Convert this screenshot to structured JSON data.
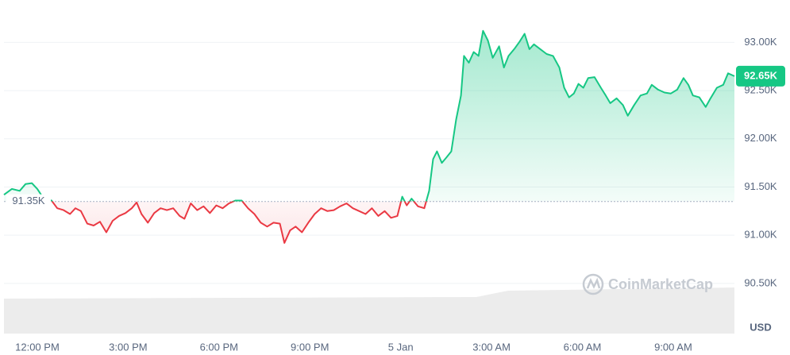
{
  "chart_data": {
    "type": "line",
    "x": [
      -1.1,
      -0.84,
      -0.58,
      -0.39,
      -0.18,
      0,
      0.21,
      0.47,
      0.66,
      0.87,
      1.08,
      1.26,
      1.44,
      1.65,
      1.86,
      2.07,
      2.28,
      2.49,
      2.7,
      2.91,
      3.12,
      3.28,
      3.44,
      3.65,
      3.86,
      4.07,
      4.28,
      4.49,
      4.7,
      4.86,
      5.07,
      5.28,
      5.49,
      5.7,
      5.91,
      6.12,
      6.33,
      6.54,
      6.75,
      6.96,
      7.17,
      7.38,
      7.59,
      7.8,
      8.01,
      8.16,
      8.35,
      8.53,
      8.74,
      8.95,
      9.16,
      9.37,
      9.58,
      9.79,
      10.0,
      10.21,
      10.42,
      10.63,
      10.84,
      11.05,
      11.26,
      11.47,
      11.68,
      11.89,
      12.05,
      12.2,
      12.36,
      12.57,
      12.78,
      12.94,
      13.07,
      13.2,
      13.36,
      13.52,
      13.67,
      13.83,
      13.99,
      14.09,
      14.25,
      14.41,
      14.57,
      14.72,
      14.88,
      15.04,
      15.25,
      15.41,
      15.56,
      15.77,
      15.93,
      16.09,
      16.25,
      16.4,
      16.61,
      16.82,
      17.03,
      17.24,
      17.4,
      17.56,
      17.72,
      17.87,
      18.03,
      18.19,
      18.4,
      18.61,
      18.77,
      18.92,
      19.13,
      19.34,
      19.5,
      19.71,
      19.92,
      20.13,
      20.29,
      20.5,
      20.71,
      20.92,
      21.13,
      21.34,
      21.5,
      21.65,
      21.86,
      22.07,
      22.23,
      22.44,
      22.65,
      22.81,
      23.02
    ],
    "values": [
      91.42,
      91.48,
      91.46,
      91.53,
      91.54,
      91.48,
      91.38,
      91.36,
      91.28,
      91.26,
      91.22,
      91.28,
      91.25,
      91.12,
      91.1,
      91.14,
      91.03,
      91.15,
      91.2,
      91.23,
      91.28,
      91.34,
      91.22,
      91.13,
      91.23,
      91.28,
      91.26,
      91.28,
      91.2,
      91.17,
      91.33,
      91.26,
      91.3,
      91.23,
      91.31,
      91.28,
      91.33,
      91.36,
      91.36,
      91.28,
      91.22,
      91.13,
      91.09,
      91.13,
      91.12,
      90.92,
      91.05,
      91.09,
      91.03,
      91.13,
      91.22,
      91.28,
      91.25,
      91.26,
      91.3,
      91.33,
      91.28,
      91.25,
      91.22,
      91.28,
      91.2,
      91.25,
      91.18,
      91.2,
      91.4,
      91.31,
      91.38,
      91.3,
      91.28,
      91.46,
      91.79,
      91.87,
      91.75,
      91.81,
      91.87,
      92.2,
      92.45,
      92.86,
      92.79,
      92.9,
      92.86,
      93.12,
      93.02,
      92.84,
      92.96,
      92.74,
      92.86,
      92.94,
      93.01,
      93.09,
      92.93,
      92.98,
      92.93,
      92.88,
      92.86,
      92.74,
      92.53,
      92.43,
      92.47,
      92.57,
      92.53,
      92.63,
      92.64,
      92.53,
      92.45,
      92.37,
      92.42,
      92.35,
      92.24,
      92.35,
      92.45,
      92.47,
      92.56,
      92.51,
      92.48,
      92.47,
      92.51,
      92.63,
      92.56,
      92.45,
      92.43,
      92.33,
      92.42,
      92.53,
      92.56,
      92.68,
      92.65
    ],
    "xlim": [
      -1.1,
      23.02
    ],
    "ylim": [
      89.98,
      93.44
    ],
    "xticks": [
      {
        "value": 0,
        "label": "12:00 PM"
      },
      {
        "value": 3,
        "label": "3:00 PM"
      },
      {
        "value": 6,
        "label": "6:00 PM"
      },
      {
        "value": 9,
        "label": "9:00 PM"
      },
      {
        "value": 12,
        "label": "5 Jan"
      },
      {
        "value": 15,
        "label": "3:00 AM"
      },
      {
        "value": 18,
        "label": "6:00 AM"
      },
      {
        "value": 21,
        "label": "9:00 AM"
      }
    ],
    "yticks": [
      {
        "value": 90.5,
        "label": "90.50K"
      },
      {
        "value": 91,
        "label": "91.00K"
      },
      {
        "value": 91.5,
        "label": "91.50K"
      },
      {
        "value": 92,
        "label": "92.00K"
      },
      {
        "value": 92.5,
        "label": "92.50K"
      },
      {
        "value": 93,
        "label": "93.00K"
      }
    ],
    "baseline": {
      "value": 91.35,
      "label": "91.35K"
    },
    "last_price": {
      "value": 92.65,
      "label": "92.65K"
    },
    "currency": "USD",
    "watermark": "CoinMarketCap",
    "colors": {
      "up": "#16c784",
      "down": "#ea3943"
    },
    "grid": true
  }
}
